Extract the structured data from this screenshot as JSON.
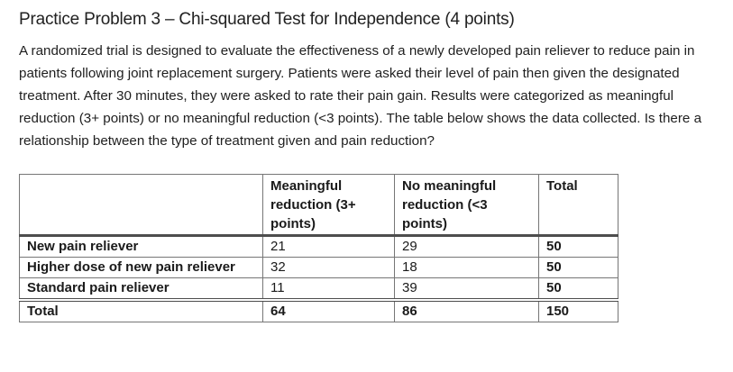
{
  "document": {
    "title": "Practice Problem 3 – Chi-squared Test for Independence (4 points)",
    "paragraph": "A randomized trial is designed to evaluate the effectiveness of a newly developed pain reliever to reduce pain in patients following joint replacement surgery. Patients were asked their level of pain then given the designated treatment. After 30 minutes, they were asked to rate their pain gain. Results were categorized as meaningful reduction (3+ points) or no meaningful reduction (<3 points). The table below shows the data collected. Is there a relationship between the type of treatment given and pain reduction?"
  },
  "table": {
    "header": {
      "row_label": "",
      "col_meaningful": "Meaningful reduction (3+ points)",
      "col_no_meaningful": "No meaningful reduction (<3 points)",
      "col_total": "Total"
    },
    "rows": [
      {
        "label": "New pain reliever",
        "meaningful": "21",
        "no_meaningful": "29",
        "total": "50"
      },
      {
        "label": "Higher dose of new pain reliever",
        "meaningful": "32",
        "no_meaningful": "18",
        "total": "50"
      },
      {
        "label": "Standard pain reliever",
        "meaningful": "11",
        "no_meaningful": "39",
        "total": "50"
      }
    ],
    "totals": {
      "label": "Total",
      "meaningful": "64",
      "no_meaningful": "86",
      "total": "150"
    }
  },
  "colors": {
    "text": "#1f1f1f",
    "border_thin": "#767676",
    "border_thick": "#4d4d4d",
    "background": "#ffffff"
  }
}
